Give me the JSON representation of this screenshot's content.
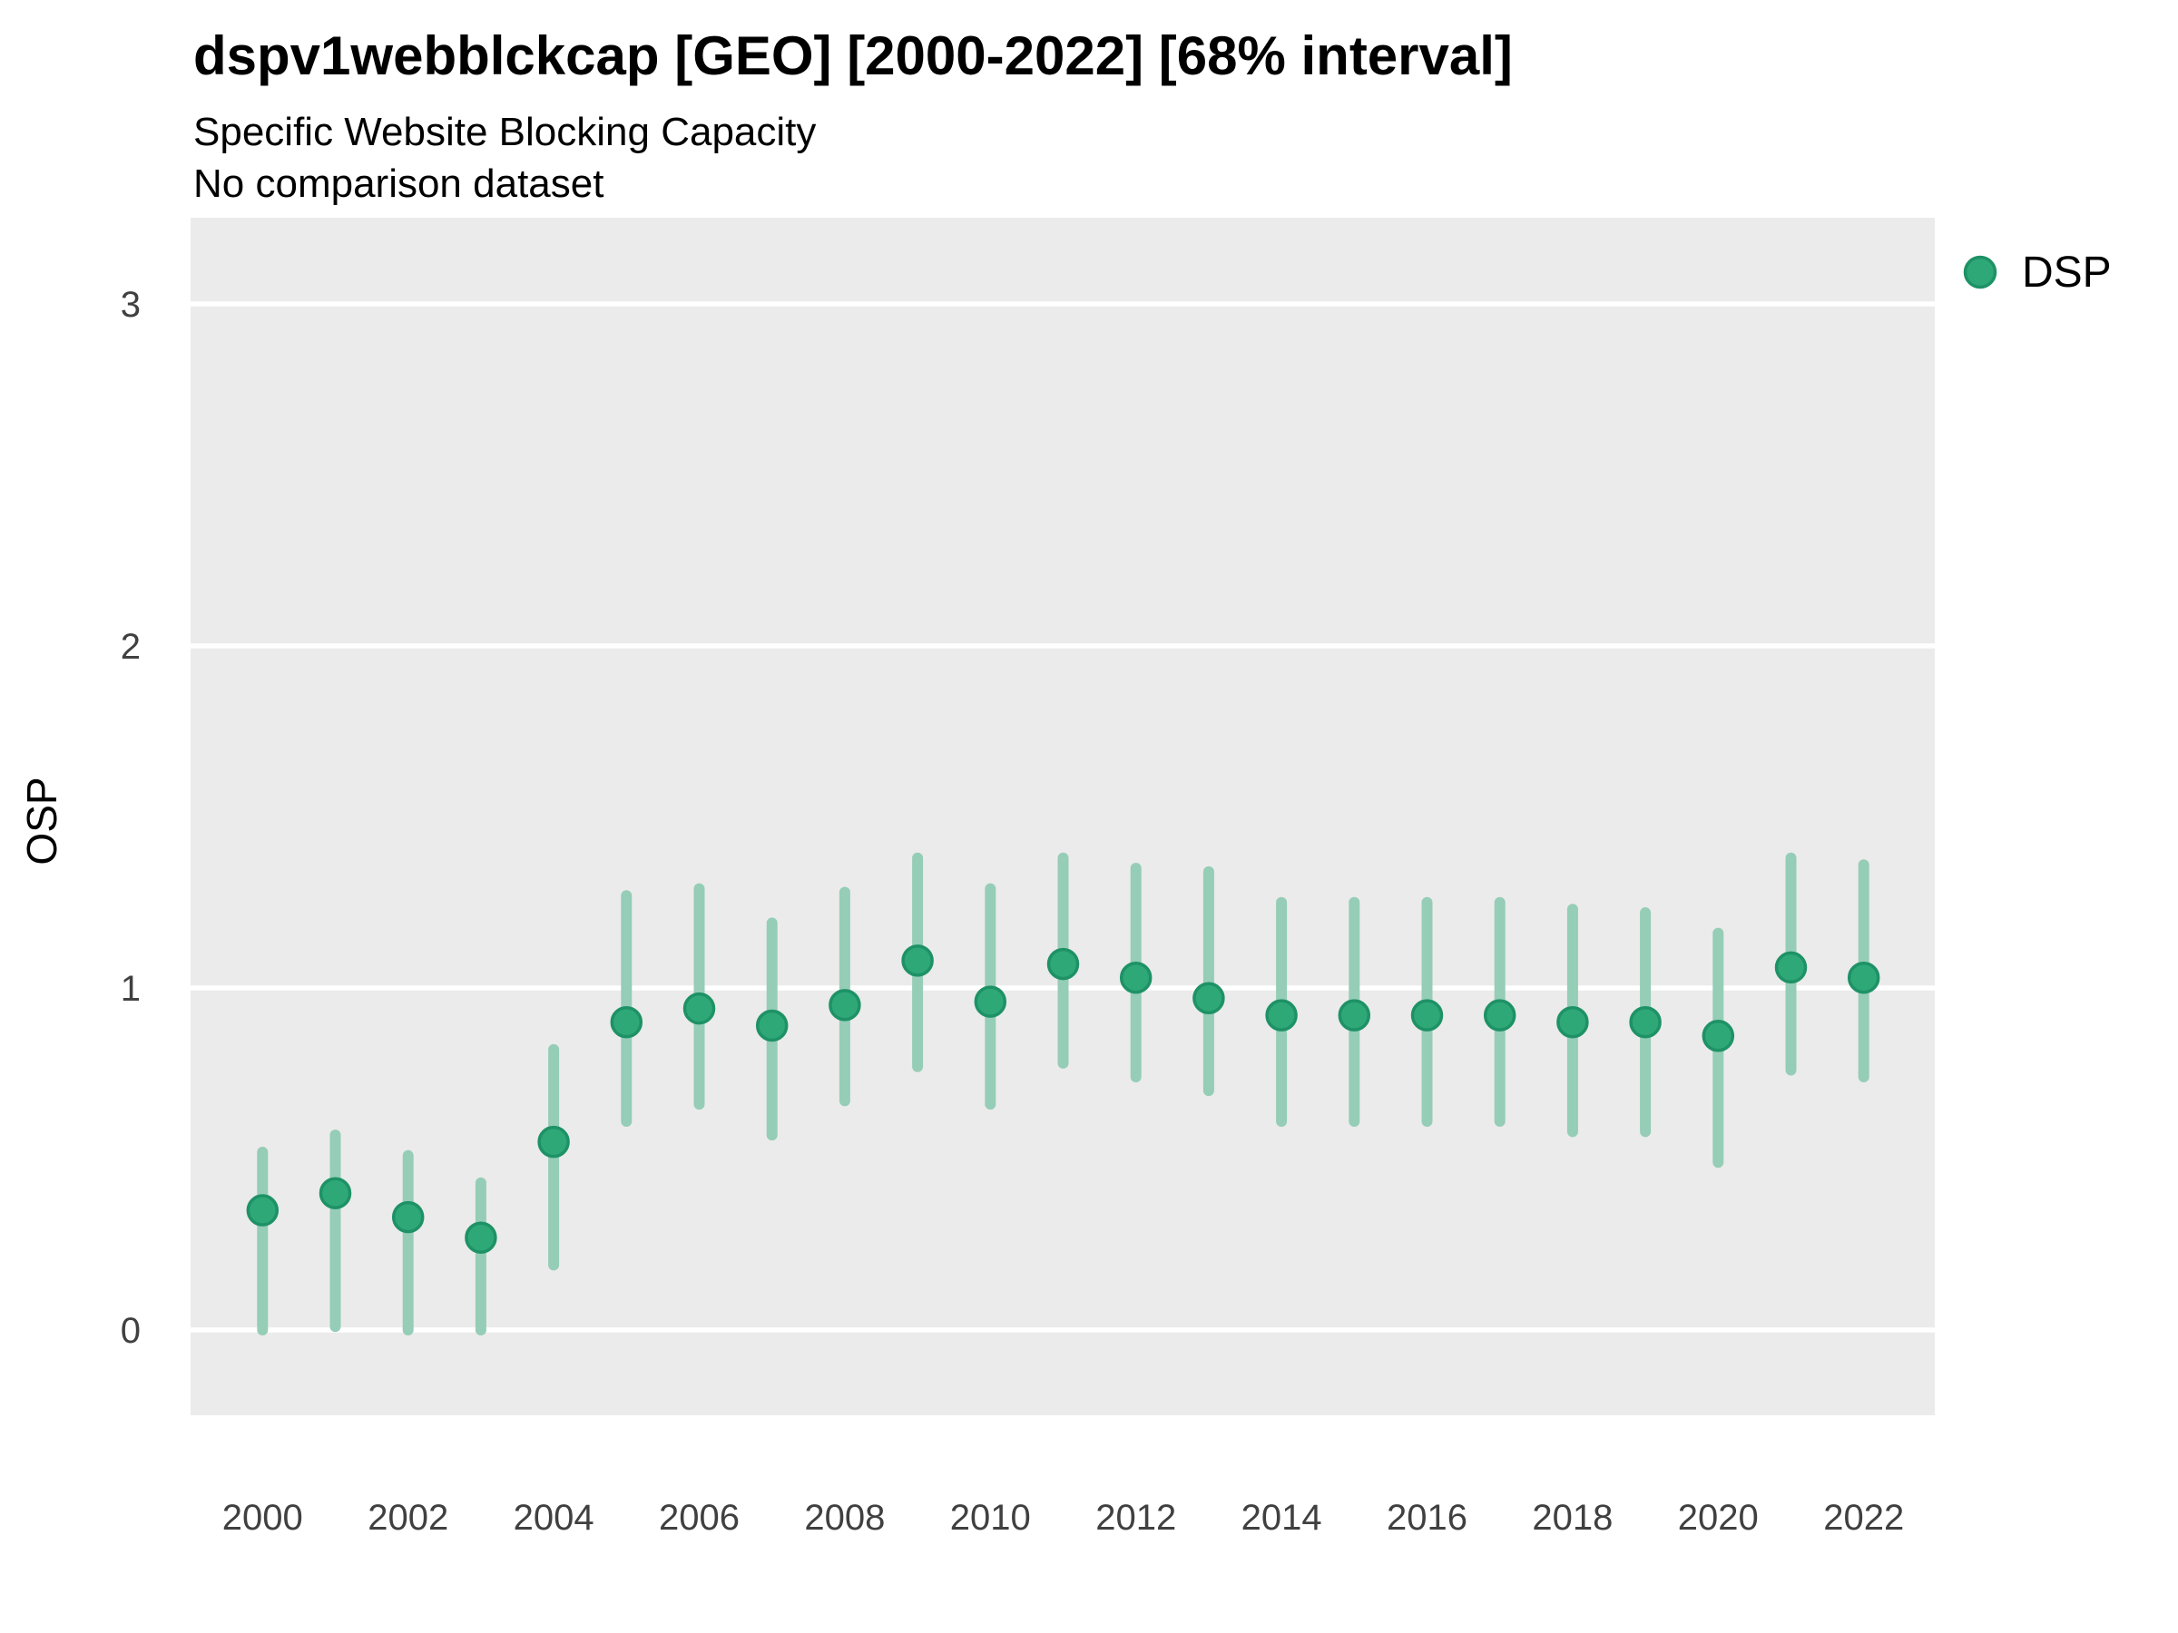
{
  "header": {
    "title": "dspv1webblckcap [GEO] [2000-2022] [68% interval]",
    "subtitle_line1": "Specific Website Blocking Capacity",
    "subtitle_line2": "No comparison dataset"
  },
  "legend": {
    "label": "DSP"
  },
  "axes": {
    "y_title": "OSP",
    "y_ticks": [
      0,
      1,
      2,
      3
    ],
    "x_ticks": [
      2000,
      2002,
      2004,
      2006,
      2008,
      2010,
      2012,
      2014,
      2016,
      2018,
      2020,
      2022
    ]
  },
  "colors": {
    "panel_bg": "#EBEBEB",
    "gridline": "#FFFFFF",
    "point_fill": "#2FA878",
    "point_stroke": "#1E9266",
    "interval_bar": "#95CDB7",
    "title_text": "#000000",
    "tick_text": "#404040"
  },
  "chart_data": {
    "type": "scatter",
    "subtype": "pointrange",
    "title": "dspv1webblckcap [GEO] [2000-2022] [68% interval]",
    "subtitle": "Specific Website Blocking Capacity",
    "note": "No comparison dataset",
    "xlabel": "",
    "ylabel": "OSP",
    "ylim": [
      -0.25,
      3.25
    ],
    "x_tick_step": 2,
    "grid": "horizontal-major-only",
    "legend_position": "right",
    "interval": "68%",
    "series": [
      {
        "name": "DSP",
        "points": [
          {
            "year": 2000,
            "value": 0.35,
            "low": 0.0,
            "high": 0.52
          },
          {
            "year": 2001,
            "value": 0.4,
            "low": 0.01,
            "high": 0.57
          },
          {
            "year": 2002,
            "value": 0.33,
            "low": 0.0,
            "high": 0.51
          },
          {
            "year": 2003,
            "value": 0.27,
            "low": 0.0,
            "high": 0.43
          },
          {
            "year": 2004,
            "value": 0.55,
            "low": 0.19,
            "high": 0.82
          },
          {
            "year": 2005,
            "value": 0.9,
            "low": 0.61,
            "high": 1.27
          },
          {
            "year": 2006,
            "value": 0.94,
            "low": 0.66,
            "high": 1.29
          },
          {
            "year": 2007,
            "value": 0.89,
            "low": 0.57,
            "high": 1.19
          },
          {
            "year": 2008,
            "value": 0.95,
            "low": 0.67,
            "high": 1.28
          },
          {
            "year": 2009,
            "value": 1.08,
            "low": 0.77,
            "high": 1.38
          },
          {
            "year": 2010,
            "value": 0.96,
            "low": 0.66,
            "high": 1.29
          },
          {
            "year": 2011,
            "value": 1.07,
            "low": 0.78,
            "high": 1.38
          },
          {
            "year": 2012,
            "value": 1.03,
            "low": 0.74,
            "high": 1.35
          },
          {
            "year": 2013,
            "value": 0.97,
            "low": 0.7,
            "high": 1.34
          },
          {
            "year": 2014,
            "value": 0.92,
            "low": 0.61,
            "high": 1.25
          },
          {
            "year": 2015,
            "value": 0.92,
            "low": 0.61,
            "high": 1.25
          },
          {
            "year": 2016,
            "value": 0.92,
            "low": 0.61,
            "high": 1.25
          },
          {
            "year": 2017,
            "value": 0.92,
            "low": 0.61,
            "high": 1.25
          },
          {
            "year": 2018,
            "value": 0.9,
            "low": 0.58,
            "high": 1.23
          },
          {
            "year": 2019,
            "value": 0.9,
            "low": 0.58,
            "high": 1.22
          },
          {
            "year": 2020,
            "value": 0.86,
            "low": 0.49,
            "high": 1.16
          },
          {
            "year": 2021,
            "value": 1.06,
            "low": 0.76,
            "high": 1.38
          },
          {
            "year": 2022,
            "value": 1.03,
            "low": 0.74,
            "high": 1.36
          }
        ]
      }
    ]
  }
}
